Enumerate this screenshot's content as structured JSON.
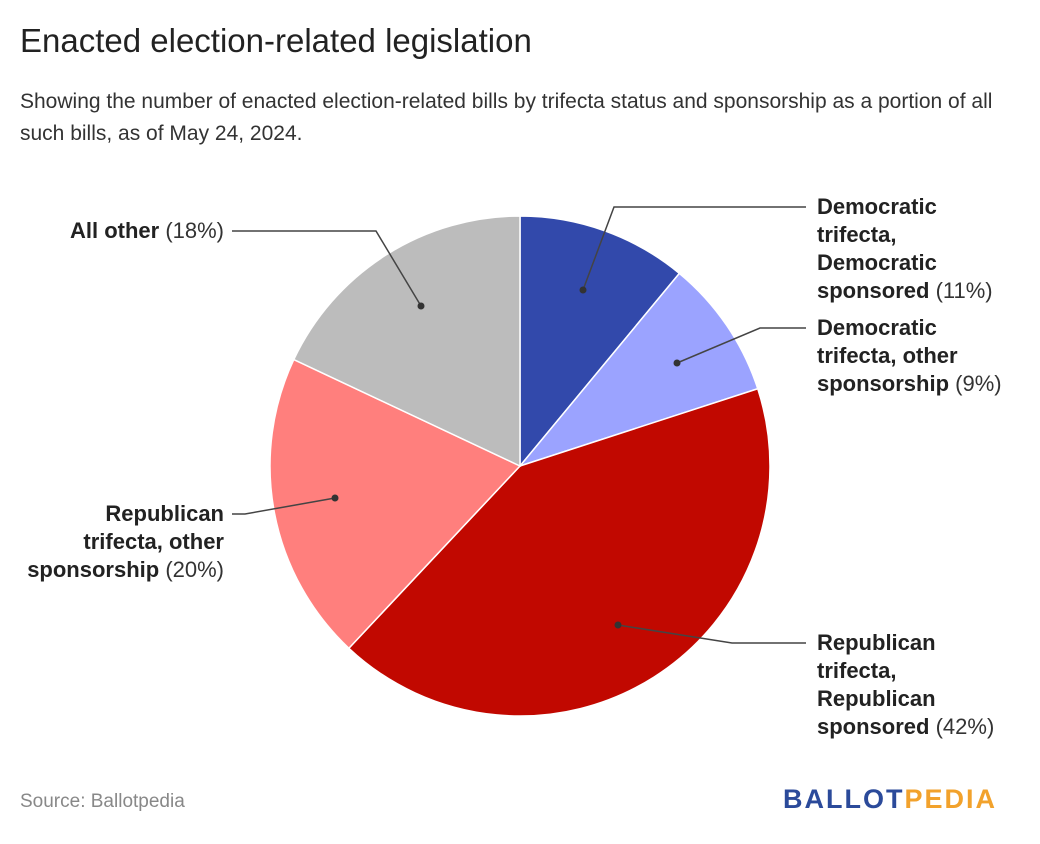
{
  "title": "Enacted election-related legislation",
  "subtitle": "Showing the number of enacted election-related bills by trifecta status and sponsorship as a portion of all such bills, as of May 24, 2024.",
  "chart_data": {
    "type": "pie",
    "title": "Enacted election-related legislation",
    "subtitle": "Showing the number of enacted election-related bills by trifecta status and sponsorship as a portion of all such bills, as of May 24, 2024.",
    "slices": [
      {
        "name": "Democratic trifecta, Democratic sponsored",
        "value": 11,
        "label_pct": "(11%)",
        "color": "#3249ab"
      },
      {
        "name": "Democratic trifecta, other sponsorship",
        "value": 9,
        "label_pct": "(9%)",
        "color": "#9ba3ff"
      },
      {
        "name": "Republican trifecta, Republican sponsored",
        "value": 42,
        "label_pct": "(42%)",
        "color": "#c10800"
      },
      {
        "name": "Republican trifecta, other sponsorship",
        "value": 20,
        "label_pct": "(20%)",
        "color": "#ff7f7d"
      },
      {
        "name": "All other",
        "value": 18,
        "label_pct": "(18%)",
        "color": "#bcbcbc"
      }
    ],
    "start_angle": "top",
    "direction": "clockwise"
  },
  "labels": [
    {
      "name_lines": [
        "Democratic",
        "trifecta,",
        "Democratic",
        "sponsored"
      ],
      "pct": "(11%)"
    },
    {
      "name_lines": [
        "Democratic",
        "trifecta, other",
        "sponsorship"
      ],
      "pct": "(9%)"
    },
    {
      "name_lines": [
        "Republican",
        "trifecta,",
        "Republican",
        "sponsored"
      ],
      "pct": "(42%)"
    },
    {
      "name_lines": [
        "Republican",
        "trifecta, other",
        "sponsorship"
      ],
      "pct": "(20%)"
    },
    {
      "name_lines": [
        "All other"
      ],
      "pct": "(18%)"
    }
  ],
  "source": "Source: Ballotpedia",
  "logo": {
    "part1": "BALLOT",
    "part2": "PEDIA"
  }
}
